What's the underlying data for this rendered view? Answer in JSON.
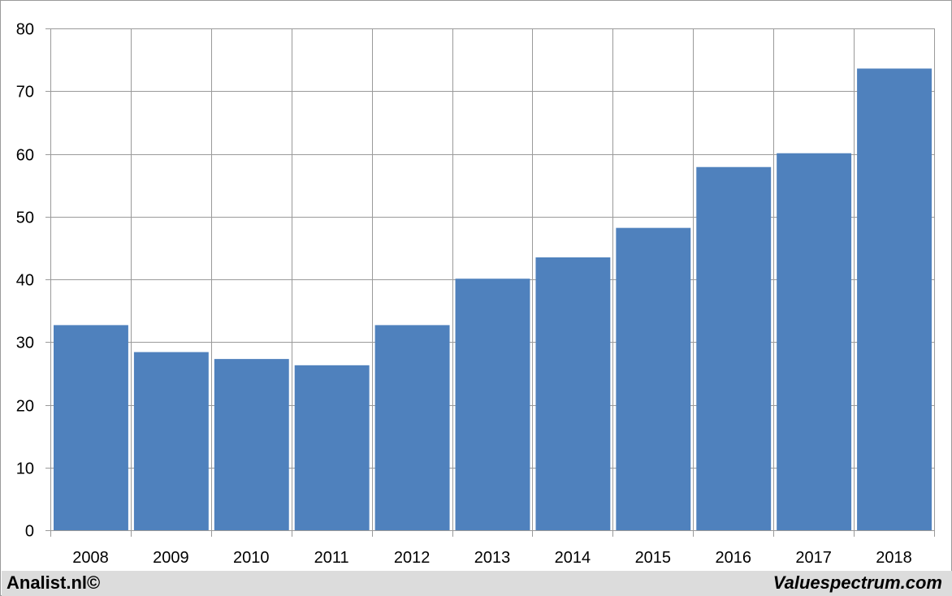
{
  "chart_data": {
    "type": "bar",
    "categories": [
      "2008",
      "2009",
      "2010",
      "2011",
      "2012",
      "2013",
      "2014",
      "2015",
      "2016",
      "2017",
      "2018"
    ],
    "values": [
      32.7,
      28.4,
      27.3,
      26.3,
      32.7,
      40.1,
      43.5,
      48.2,
      57.9,
      60.1,
      73.6
    ],
    "title": "",
    "xlabel": "",
    "ylabel": "",
    "ylim": [
      0,
      80
    ],
    "yticks": [
      "0",
      "10",
      "20",
      "30",
      "40",
      "50",
      "60",
      "70",
      "80"
    ],
    "grid": true,
    "bar_color": "#4f81bd",
    "grid_color": "#9a9a9a"
  },
  "footer": {
    "left_text": "Analist.nl©",
    "right_text": "Valuespectrum.com"
  }
}
